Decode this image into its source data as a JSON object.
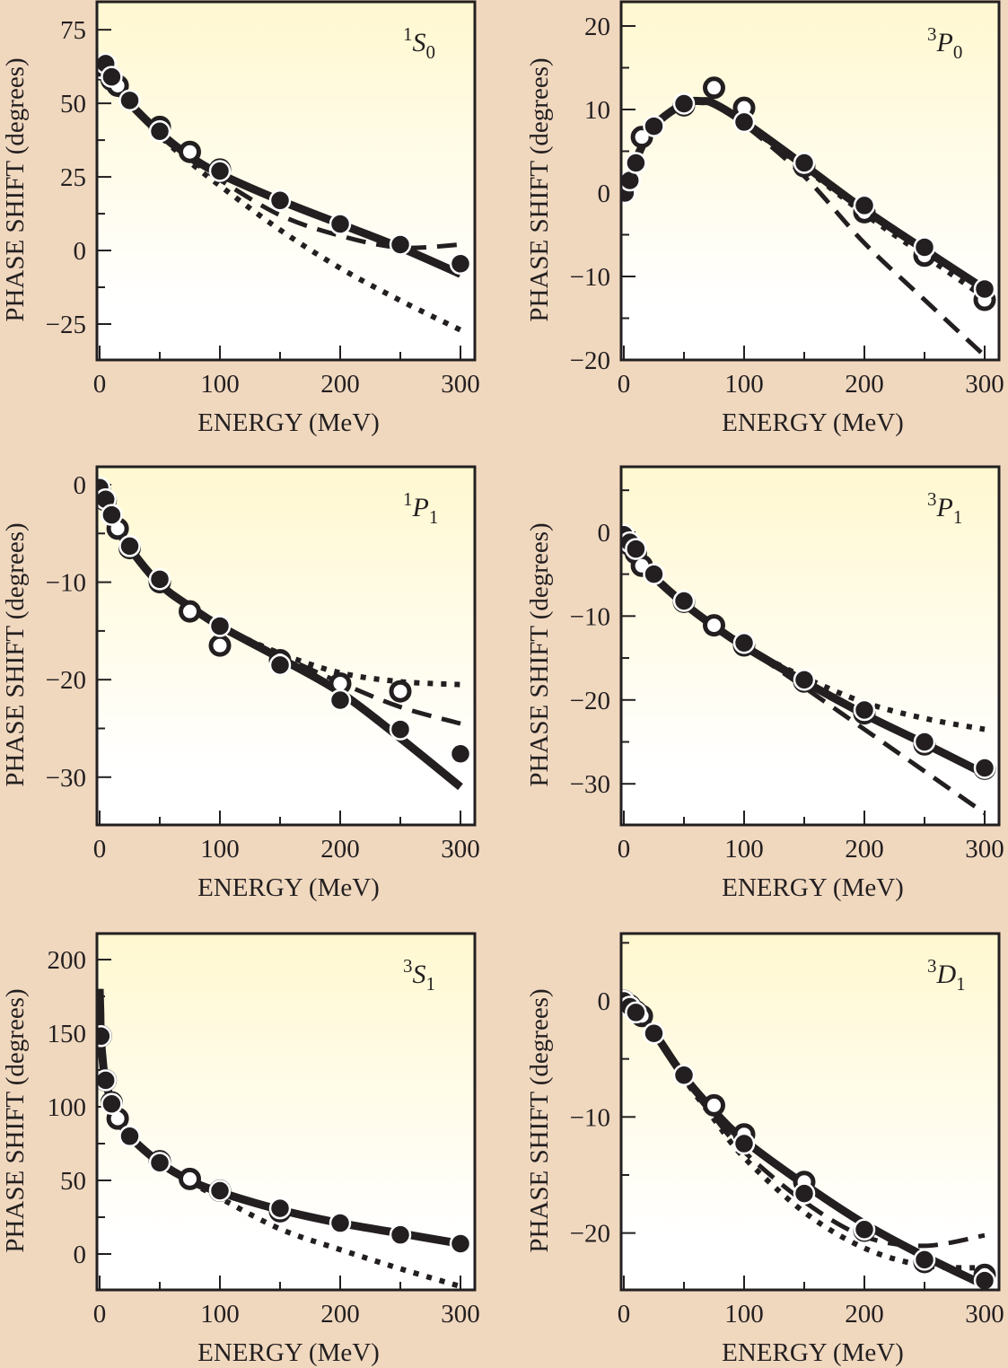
{
  "figure": {
    "background_color": "#f0d8bf",
    "plot_gradient_top": "#fff8d0",
    "plot_gradient_bottom": "#ffffff",
    "ink_color": "#231f20"
  },
  "chart_data": [
    {
      "type": "line",
      "panel": "top-left",
      "label": {
        "sup": "1",
        "main": "S",
        "sub": "0"
      },
      "xlabel": "ENERGY (MeV)",
      "ylabel": "PHASE SHIFT (degrees)",
      "xlim": [
        0,
        312
      ],
      "ylim": [
        -37.2,
        84.5
      ],
      "xticks": [
        0,
        100,
        200,
        300
      ],
      "xminor": [
        50,
        150,
        250
      ],
      "yticks": [
        75,
        50,
        25,
        0,
        -25
      ],
      "ytick_labels": [
        "75",
        "50",
        "25",
        "0",
        "−25"
      ],
      "yminor": [
        62.5,
        37.5,
        12.5,
        -12.5
      ],
      "grid": false,
      "series": [
        {
          "name": "solid",
          "style": "solid",
          "x": [
            0,
            10,
            25,
            50,
            75,
            100,
            150,
            200,
            250,
            300
          ],
          "y": [
            62,
            57,
            50,
            40,
            32,
            26,
            17,
            9,
            1,
            -8
          ]
        },
        {
          "name": "dashed",
          "style": "dashed",
          "x": [
            0,
            10,
            25,
            50,
            75,
            100,
            150,
            200,
            250,
            300
          ],
          "y": [
            62,
            57,
            50,
            39,
            31,
            24,
            12,
            5,
            1,
            2
          ]
        },
        {
          "name": "dotted",
          "style": "dotted",
          "x": [
            0,
            10,
            25,
            50,
            75,
            100,
            150,
            200,
            250,
            300
          ],
          "y": [
            62,
            57,
            50,
            39,
            30,
            22,
            7,
            -6,
            -17,
            -27
          ]
        }
      ],
      "points_filled": {
        "x": [
          1,
          5,
          10,
          25,
          50,
          100,
          150,
          200,
          250,
          300
        ],
        "y": [
          62,
          63.5,
          59,
          51,
          40.5,
          27,
          17,
          9,
          2,
          -4.5
        ]
      },
      "points_open": {
        "x": [
          1,
          10,
          15,
          50,
          75,
          100
        ],
        "y": [
          61.5,
          58,
          56,
          42,
          33.5,
          27.5
        ]
      }
    },
    {
      "type": "line",
      "panel": "top-right",
      "label": {
        "sup": "3",
        "main": "P",
        "sub": "0"
      },
      "xlabel": "ENERGY (MeV)",
      "ylabel": "PHASE SHIFT (degrees)",
      "xlim": [
        0,
        312
      ],
      "ylim": [
        -20,
        22.9
      ],
      "xticks": [
        0,
        100,
        200,
        300
      ],
      "xminor": [
        50,
        150,
        250
      ],
      "yticks": [
        20,
        10,
        0,
        -10,
        -20
      ],
      "ytick_labels": [
        "20",
        "10",
        "0",
        "−10",
        "−20"
      ],
      "yminor": [
        15,
        5,
        -5,
        -15
      ],
      "grid": false,
      "series": [
        {
          "name": "solid",
          "style": "solid",
          "x": [
            0,
            5,
            10,
            25,
            50,
            65,
            75,
            100,
            150,
            200,
            250,
            300
          ],
          "y": [
            0,
            2,
            4,
            8,
            10.7,
            11,
            10.7,
            8.5,
            3.3,
            -2,
            -6.8,
            -11.5
          ]
        },
        {
          "name": "dashed",
          "style": "dashed",
          "x": [
            0,
            5,
            10,
            25,
            50,
            65,
            75,
            100,
            150,
            200,
            250,
            300
          ],
          "y": [
            0,
            2,
            4,
            8,
            10.7,
            11,
            10.6,
            8.2,
            2,
            -6,
            -12.8,
            -19.5
          ]
        },
        {
          "name": "dotted",
          "style": "dotted",
          "x": [
            0,
            5,
            10,
            25,
            50,
            65,
            75,
            100,
            150,
            200,
            250,
            300
          ],
          "y": [
            0,
            2,
            4,
            8,
            10.7,
            11,
            10.6,
            8.3,
            3,
            -2.5,
            -7.5,
            -12.5
          ]
        }
      ],
      "points_filled": {
        "x": [
          1,
          5,
          10,
          25,
          50,
          100,
          150,
          200,
          250,
          300
        ],
        "y": [
          0,
          1.5,
          3.6,
          8,
          10.7,
          8.5,
          3.6,
          -1.5,
          -6.5,
          -11.5
        ]
      },
      "points_open": {
        "x": [
          15,
          50,
          75,
          100,
          150,
          200,
          250,
          300
        ],
        "y": [
          6.7,
          10.5,
          12.6,
          10.2,
          3.2,
          -2.3,
          -7.5,
          -12.8
        ]
      }
    },
    {
      "type": "line",
      "panel": "middle-left",
      "label": {
        "sup": "1",
        "main": "P",
        "sub": "1"
      },
      "xlabel": "ENERGY (MeV)",
      "ylabel": "PHASE SHIFT (degrees)",
      "xlim": [
        0,
        312
      ],
      "ylim": [
        -34.9,
        1.84
      ],
      "xticks": [
        0,
        100,
        200,
        300
      ],
      "xminor": [
        50,
        150,
        250
      ],
      "yticks": [
        0,
        -10,
        -20,
        -30
      ],
      "ytick_labels": [
        "0",
        "−10",
        "−20",
        "−30"
      ],
      "yminor": [
        -5,
        -15,
        -25
      ],
      "grid": false,
      "series": [
        {
          "name": "solid",
          "style": "solid",
          "x": [
            0,
            5,
            10,
            25,
            50,
            75,
            100,
            150,
            200,
            250,
            300
          ],
          "y": [
            -0.5,
            -2,
            -3.5,
            -6.5,
            -10.2,
            -12.5,
            -14.5,
            -17.8,
            -21.3,
            -26,
            -31
          ]
        },
        {
          "name": "dashed",
          "style": "dashed",
          "x": [
            0,
            5,
            10,
            25,
            50,
            75,
            100,
            150,
            200,
            250,
            300
          ],
          "y": [
            -0.5,
            -2,
            -3.5,
            -6.5,
            -10.2,
            -12.5,
            -14.5,
            -17.5,
            -20.3,
            -22.8,
            -24.5
          ]
        },
        {
          "name": "dotted",
          "style": "dotted",
          "x": [
            0,
            5,
            10,
            25,
            50,
            75,
            100,
            150,
            200,
            250,
            300
          ],
          "y": [
            -0.5,
            -2,
            -3.5,
            -6.5,
            -10.2,
            -12.5,
            -14.5,
            -17.3,
            -19.3,
            -20.2,
            -20.5
          ]
        }
      ],
      "points_filled": {
        "x": [
          0,
          5,
          10,
          25,
          50,
          100,
          150,
          200,
          250,
          300
        ],
        "y": [
          -0.3,
          -1.5,
          -3.1,
          -6.3,
          -9.7,
          -14.5,
          -18.5,
          -22.1,
          -25.1,
          -27.6
        ]
      },
      "points_open": {
        "x": [
          0,
          5,
          15,
          25,
          50,
          75,
          100,
          150,
          200,
          250
        ],
        "y": [
          -0.5,
          -1.6,
          -4.5,
          -6.5,
          -10,
          -13,
          -16.5,
          -18,
          -20.4,
          -21.2
        ]
      }
    },
    {
      "type": "line",
      "panel": "middle-right",
      "label": {
        "sup": "3",
        "main": "P",
        "sub": "1"
      },
      "xlabel": "ENERGY (MeV)",
      "ylabel": "PHASE SHIFT (degrees)",
      "xlim": [
        0,
        312
      ],
      "ylim": [
        -34.9,
        7.8
      ],
      "xticks": [
        0,
        100,
        200,
        300
      ],
      "xminor": [
        50,
        150,
        250
      ],
      "yticks": [
        0,
        -10,
        -20,
        -30
      ],
      "ytick_labels": [
        "0",
        "−10",
        "−20",
        "−30"
      ],
      "yminor": [
        5,
        -5,
        -15,
        -25
      ],
      "grid": false,
      "series": [
        {
          "name": "solid",
          "style": "solid",
          "x": [
            0,
            5,
            10,
            25,
            50,
            75,
            100,
            150,
            200,
            250,
            300
          ],
          "y": [
            -0.3,
            -1.5,
            -2.8,
            -5.3,
            -8.5,
            -11.2,
            -13.6,
            -17.8,
            -21.7,
            -25.2,
            -28.8
          ]
        },
        {
          "name": "dashed",
          "style": "dashed",
          "x": [
            0,
            5,
            10,
            25,
            50,
            75,
            100,
            150,
            200,
            250,
            300
          ],
          "y": [
            -0.3,
            -1.5,
            -2.8,
            -5.3,
            -8.5,
            -11.2,
            -13.6,
            -18.5,
            -23.5,
            -28.5,
            -33.5
          ]
        },
        {
          "name": "dotted",
          "style": "dotted",
          "x": [
            0,
            5,
            10,
            25,
            50,
            75,
            100,
            150,
            200,
            250,
            300
          ],
          "y": [
            -0.3,
            -1.5,
            -2.8,
            -5.3,
            -8.5,
            -11.2,
            -13.6,
            -17.3,
            -20.3,
            -22.2,
            -23.5
          ]
        }
      ],
      "points_filled": {
        "x": [
          0,
          5,
          10,
          25,
          50,
          100,
          150,
          200,
          250,
          300
        ],
        "y": [
          -0.3,
          -1.2,
          -2,
          -5,
          -8.2,
          -13.2,
          -17.6,
          -21.2,
          -25,
          -28.1
        ]
      },
      "points_open": {
        "x": [
          0,
          5,
          10,
          15,
          50,
          75,
          100,
          150,
          200,
          250,
          300
        ],
        "y": [
          -0.5,
          -1.5,
          -2.5,
          -4,
          -8.3,
          -11.1,
          -13.5,
          -17.8,
          -21.6,
          -25.3,
          -28.2
        ]
      }
    },
    {
      "type": "line",
      "panel": "bottom-left",
      "label": {
        "sup": "3",
        "main": "S",
        "sub": "1"
      },
      "xlabel": "ENERGY (MeV)",
      "ylabel": "PHASE SHIFT (degrees)",
      "xlim": [
        0,
        312
      ],
      "ylim": [
        -24.4,
        217.7
      ],
      "xticks": [
        0,
        100,
        200,
        300
      ],
      "xminor": [
        50,
        150,
        250
      ],
      "yticks": [
        200,
        150,
        100,
        50,
        0
      ],
      "ytick_labels": [
        "200",
        "150",
        "100",
        "50",
        "0"
      ],
      "yminor": [
        175,
        125,
        75,
        25
      ],
      "grid": false,
      "series": [
        {
          "name": "solid",
          "style": "solid",
          "x": [
            0,
            0.5,
            1,
            3,
            5,
            10,
            15,
            25,
            50,
            75,
            100,
            150,
            200,
            250,
            300
          ],
          "y": [
            180,
            165,
            148,
            128,
            117,
            103,
            93,
            80,
            62,
            50,
            42,
            30,
            21,
            14,
            7
          ]
        },
        {
          "name": "dashed",
          "style": "dashed",
          "x": [
            0,
            0.5,
            1,
            3,
            5,
            10,
            15,
            25,
            50,
            75,
            100,
            150,
            200,
            250,
            300
          ],
          "y": [
            180,
            165,
            148,
            128,
            117,
            103,
            93,
            80,
            62,
            50,
            42,
            29,
            20,
            13,
            7
          ]
        },
        {
          "name": "dotted",
          "style": "dotted",
          "x": [
            0,
            0.5,
            1,
            3,
            5,
            10,
            15,
            25,
            50,
            75,
            100,
            150,
            200,
            250,
            300
          ],
          "y": [
            180,
            165,
            148,
            128,
            117,
            103,
            93,
            80,
            62,
            49,
            38,
            17,
            3,
            -10,
            -22
          ]
        }
      ],
      "points_filled": {
        "x": [
          1,
          5,
          10,
          25,
          50,
          100,
          150,
          200,
          250,
          300
        ],
        "y": [
          148,
          118,
          102,
          80,
          62,
          43,
          31,
          21,
          13,
          7
        ]
      },
      "points_open": {
        "x": [
          1,
          5,
          10,
          15,
          50,
          75,
          100,
          150
        ],
        "y": [
          148,
          118,
          103,
          92,
          63,
          51,
          43,
          29
        ]
      }
    },
    {
      "type": "line",
      "panel": "bottom-right",
      "label": {
        "sup": "3",
        "main": "D",
        "sub": "1"
      },
      "xlabel": "ENERGY (MeV)",
      "ylabel": "PHASE SHIFT (degrees)",
      "xlim": [
        0,
        312
      ],
      "ylim": [
        -24.9,
        5.8
      ],
      "xticks": [
        0,
        100,
        200,
        300
      ],
      "xminor": [
        50,
        150,
        250
      ],
      "yticks": [
        0,
        -10,
        -20
      ],
      "ytick_labels": [
        "0",
        "−10",
        "−20"
      ],
      "yminor": [
        5,
        -5,
        -15
      ],
      "grid": false,
      "series": [
        {
          "name": "solid",
          "style": "solid",
          "x": [
            0,
            5,
            10,
            25,
            50,
            75,
            100,
            150,
            200,
            250,
            300
          ],
          "y": [
            0,
            -0.3,
            -0.8,
            -2.7,
            -6.5,
            -9.5,
            -12,
            -15.8,
            -19.2,
            -22,
            -24.5
          ]
        },
        {
          "name": "dashed",
          "style": "dashed",
          "x": [
            0,
            5,
            10,
            25,
            50,
            75,
            100,
            150,
            200,
            250,
            300
          ],
          "y": [
            0,
            -0.3,
            -0.8,
            -2.7,
            -6.7,
            -10,
            -13,
            -17.3,
            -20.3,
            -21.1,
            -20.2
          ]
        },
        {
          "name": "dotted",
          "style": "dotted",
          "x": [
            0,
            5,
            10,
            25,
            50,
            75,
            100,
            150,
            200,
            250,
            300
          ],
          "y": [
            0,
            -0.3,
            -0.8,
            -2.7,
            -6.7,
            -10.2,
            -13.5,
            -18.2,
            -21.3,
            -22.8,
            -23
          ]
        }
      ],
      "points_filled": {
        "x": [
          0,
          5,
          10,
          25,
          50,
          100,
          150,
          200,
          250,
          300
        ],
        "y": [
          0,
          -0.5,
          -1,
          -2.8,
          -6.4,
          -12.3,
          -16.6,
          -19.7,
          -22.3,
          -24.1
        ]
      },
      "points_open": {
        "x": [
          0,
          5,
          10,
          15,
          75,
          100,
          150,
          200,
          250,
          300
        ],
        "y": [
          0,
          -0.4,
          -0.9,
          -1.3,
          -9,
          -11.5,
          -15.6,
          -19.8,
          -22.5,
          -23.6
        ]
      }
    }
  ]
}
